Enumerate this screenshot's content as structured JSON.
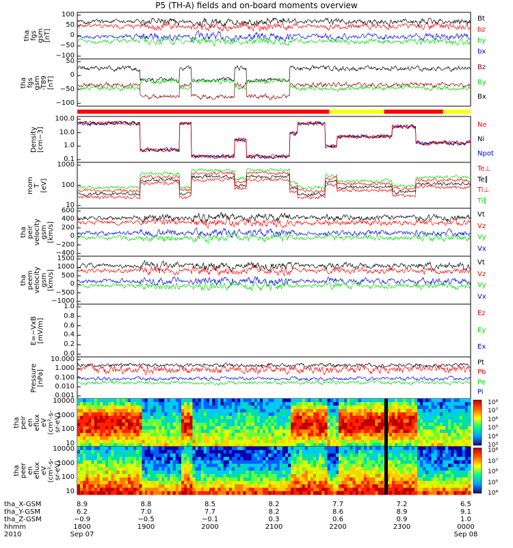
{
  "title": "P5 (TH-A) fields and on-board moments overview",
  "colors": {
    "black": "#000000",
    "red": "#ff0000",
    "green": "#00dd00",
    "blue": "#0000ff",
    "darkred": "#8b0000",
    "yellow": "#ffff00"
  },
  "chart_data": [
    {
      "type": "line",
      "panel": "fgs",
      "ylabel": [
        "tha",
        "fgs",
        "gsm",
        "[nT]"
      ],
      "ylim": [
        -100,
        100
      ],
      "yticks": [
        "100",
        "50",
        "0",
        "−50",
        "−100"
      ],
      "series": [
        {
          "name": "Bt",
          "color": "black",
          "level": 55
        },
        {
          "name": "bz",
          "color": "red",
          "level": 40
        },
        {
          "name": "by",
          "color": "green",
          "level": 0
        },
        {
          "name": "bx",
          "color": "blue",
          "level": 5
        }
      ]
    },
    {
      "type": "line",
      "panel": "fgh",
      "ylabel": [
        "tha",
        "fgs",
        "gsm",
        "-T89",
        "[nT]"
      ],
      "ylim": [
        -130,
        60
      ],
      "yticks": [
        "50",
        "0",
        "−50",
        "−100"
      ],
      "series": [
        {
          "name": "Bz",
          "color": "darkred",
          "level": -10
        },
        {
          "name": "By",
          "color": "green",
          "level": 5
        },
        {
          "name": "Bx",
          "color": "black",
          "level": 0
        }
      ]
    },
    {
      "type": "line",
      "panel": "density",
      "scale": "log",
      "ylabel": [
        "Density",
        "[cm−3]"
      ],
      "ylim": [
        0.1,
        100
      ],
      "yticks": [
        "100.0",
        "10.0",
        "1.0",
        "0.1"
      ],
      "series": [
        {
          "name": "Ne",
          "color": "red"
        },
        {
          "name": "Ni",
          "color": "black"
        },
        {
          "name": "Npot",
          "color": "blue"
        }
      ]
    },
    {
      "type": "line",
      "panel": "temperature",
      "scale": "log",
      "ylabel": [
        "mom",
        "T",
        "[eV]"
      ],
      "ylim": [
        10,
        10000
      ],
      "yticks": [
        "1000",
        "100",
        "10"
      ],
      "series": [
        {
          "name": "Te⊥",
          "color": "red"
        },
        {
          "name": "Te∥",
          "color": "black"
        },
        {
          "name": "Ti⊥",
          "color": "red"
        },
        {
          "name": "Ti∥",
          "color": "green"
        }
      ]
    },
    {
      "type": "line",
      "panel": "peir",
      "ylabel": [
        "tha",
        "peir",
        "velocity",
        "gsm",
        "[km/s]"
      ],
      "ylim": [
        -400,
        600
      ],
      "yticks": [
        "600",
        "400",
        "200",
        "0",
        "−200",
        "−400"
      ],
      "series": [
        {
          "name": "Vt",
          "color": "black"
        },
        {
          "name": "Vz",
          "color": "red"
        },
        {
          "name": "Vy",
          "color": "green"
        },
        {
          "name": "Vx",
          "color": "blue"
        }
      ]
    },
    {
      "type": "line",
      "panel": "peem",
      "ylabel": [
        "tha",
        "peem",
        "velocity",
        "gsm",
        "[km/s]"
      ],
      "ylim": [
        -1500,
        1500
      ],
      "yticks": [
        "1500",
        "1000",
        "500",
        "0",
        "−500",
        "−1000"
      ],
      "series": [
        {
          "name": "Vt",
          "color": "black"
        },
        {
          "name": "Vz",
          "color": "red"
        },
        {
          "name": "Vy",
          "color": "green"
        },
        {
          "name": "Vx",
          "color": "blue"
        }
      ]
    },
    {
      "type": "line",
      "panel": "efield",
      "ylabel": [
        "E=−VxB",
        "[mV/m]"
      ],
      "ylim": [
        0,
        1.0
      ],
      "yticks": [
        "1.0",
        "0.8",
        "0.6",
        "0.4",
        "0.2",
        "0.0"
      ],
      "series": [
        {
          "name": "Ez",
          "color": "red"
        },
        {
          "name": "Ey",
          "color": "green"
        },
        {
          "name": "Ex",
          "color": "blue"
        }
      ]
    },
    {
      "type": "line",
      "panel": "pressure",
      "scale": "log",
      "ylabel": [
        "Pressure",
        "[nPa]"
      ],
      "ylim": [
        0.001,
        10
      ],
      "yticks": [
        "10.000",
        "1.000",
        "0.100",
        "0.010",
        "0.001"
      ],
      "series": [
        {
          "name": "Pt",
          "color": "black"
        },
        {
          "name": "Pb",
          "color": "red"
        },
        {
          "name": "Pe",
          "color": "green"
        },
        {
          "name": "Pi",
          "color": "blue"
        }
      ]
    },
    {
      "type": "heatmap",
      "panel": "peir_spec",
      "ylabel": [
        "tha",
        "peir",
        "en",
        "eflux",
        "eV",
        "(cm²-s-",
        "sr-eV)"
      ],
      "yticks": [
        "10000",
        "1000",
        "100",
        "10"
      ],
      "colorbar": [
        "10⁸",
        "10⁷",
        "10⁶",
        "10⁵",
        "10⁴",
        "10³"
      ]
    },
    {
      "type": "heatmap",
      "panel": "peer_spec",
      "ylabel": [
        "tha",
        "peer",
        "en",
        "eflux",
        "eV",
        "(cm²-s-",
        "sr-eV)"
      ],
      "yticks": [
        "10000",
        "1000",
        "100",
        "10"
      ],
      "colorbar": [
        "10⁸",
        "10⁷",
        "10⁶",
        "10⁵",
        "10⁴"
      ]
    }
  ],
  "xaxis": {
    "rows": [
      "tha_X-GSM",
      "tha_Y-GSM",
      "tha_Z-GSM",
      "hhmm",
      "2010"
    ],
    "columns": [
      [
        "8.9",
        "6.2",
        "−0.9",
        "1800",
        "Sep 07"
      ],
      [
        "8.8",
        "7.0",
        "−0.5",
        "1900",
        ""
      ],
      [
        "8.5",
        "7.7",
        "−0.1",
        "2000",
        ""
      ],
      [
        "8.2",
        "8.2",
        "0.3",
        "2100",
        ""
      ],
      [
        "7.7",
        "8.6",
        "0.6",
        "2200",
        ""
      ],
      [
        "7.2",
        "8.9",
        "0.9",
        "2300",
        ""
      ],
      [
        "6.5",
        "9.1",
        "1.0",
        "0000",
        "Sep 08"
      ]
    ]
  }
}
